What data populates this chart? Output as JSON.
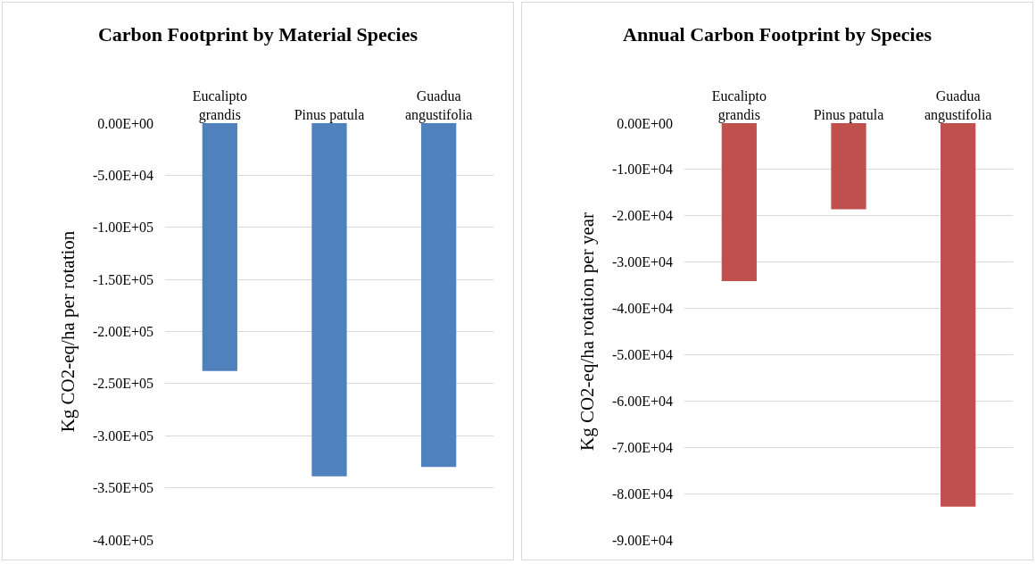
{
  "chart_data": [
    {
      "type": "bar",
      "title": "Carbon Footprint by Material Species",
      "ylabel": "Kg CO2-eq/ha per rotation",
      "categories": [
        "Eucalipto grandis",
        "Pinus patula",
        "Guadua angustifolia"
      ],
      "series": [
        {
          "color": "#4f81bd",
          "values": [
            -238000,
            -339000,
            -330000
          ]
        }
      ],
      "ylim": [
        -400000,
        0
      ],
      "yticks": [
        {
          "value": 0,
          "label": "0.00E+00"
        },
        {
          "value": -50000,
          "label": "-5.00E+04"
        },
        {
          "value": -100000,
          "label": "-1.00E+05"
        },
        {
          "value": -150000,
          "label": "-1.50E+05"
        },
        {
          "value": -200000,
          "label": "-2.00E+05"
        },
        {
          "value": -250000,
          "label": "-2.50E+05"
        },
        {
          "value": -300000,
          "label": "-3.00E+05"
        },
        {
          "value": -350000,
          "label": "-3.50E+05"
        },
        {
          "value": -400000,
          "label": "-4.00E+05"
        }
      ],
      "grid": "y"
    },
    {
      "type": "bar",
      "title": "Annual Carbon Footprint by Species",
      "ylabel": "Kg CO2-eq/ha rotation per year",
      "categories": [
        "Eucalipto grandis",
        "Pinus patula",
        "Guadua angustifolia"
      ],
      "series": [
        {
          "color": "#c0504d",
          "values": [
            -34100,
            -18600,
            -82800
          ]
        }
      ],
      "ylim": [
        -90000,
        0
      ],
      "yticks": [
        {
          "value": 0,
          "label": "0.00E+00"
        },
        {
          "value": -10000,
          "label": "-1.00E+04"
        },
        {
          "value": -20000,
          "label": "-2.00E+04"
        },
        {
          "value": -30000,
          "label": "-3.00E+04"
        },
        {
          "value": -40000,
          "label": "-4.00E+04"
        },
        {
          "value": -50000,
          "label": "-5.00E+04"
        },
        {
          "value": -60000,
          "label": "-6.00E+04"
        },
        {
          "value": -70000,
          "label": "-7.00E+04"
        },
        {
          "value": -80000,
          "label": "-8.00E+04"
        },
        {
          "value": -90000,
          "label": "-9.00E+04"
        }
      ],
      "grid": "y"
    }
  ]
}
